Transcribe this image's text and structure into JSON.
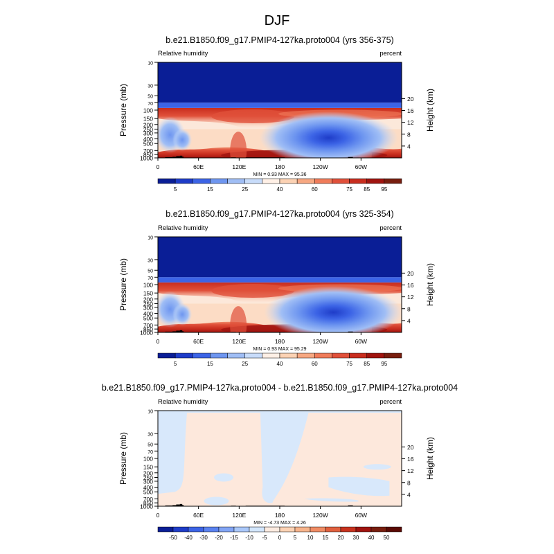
{
  "main_title": "DJF",
  "chart_data": [
    {
      "type": "heatmap",
      "title": "b.e21.B1850.f09_g17.PMIP4-127ka.proto004 (yrs 356-375)",
      "left_label": "Relative humidity",
      "right_label": "percent",
      "ylabel": "Pressure (mb)",
      "ylabel_right": "Height (km)",
      "x_ticks": [
        "0",
        "60E",
        "120E",
        "180",
        "120W",
        "60W"
      ],
      "y_ticks": [
        "10",
        "30",
        "50",
        "70",
        "100",
        "150",
        "200",
        "250",
        "300",
        "400",
        "500",
        "700",
        "850",
        "1000"
      ],
      "height_ticks": [
        "20",
        "16",
        "12",
        "8",
        "4"
      ],
      "min_max_text": "MIN =   0.93  MAX =  95.36",
      "colorbar_labels": [
        "5",
        "15",
        "25",
        "40",
        "60",
        "75",
        "85",
        "95"
      ]
    },
    {
      "type": "heatmap",
      "title": "b.e21.B1850.f09_g17.PMIP4-127ka.proto004 (yrs 325-354)",
      "left_label": "Relative humidity",
      "right_label": "percent",
      "ylabel": "Pressure (mb)",
      "ylabel_right": "Height (km)",
      "x_ticks": [
        "0",
        "60E",
        "120E",
        "180",
        "120W",
        "60W"
      ],
      "y_ticks": [
        "10",
        "30",
        "50",
        "70",
        "100",
        "150",
        "200",
        "250",
        "300",
        "400",
        "500",
        "700",
        "850",
        "1000"
      ],
      "height_ticks": [
        "20",
        "16",
        "12",
        "8",
        "4"
      ],
      "min_max_text": "MIN =   0.93  MAX =  95.29",
      "colorbar_labels": [
        "5",
        "15",
        "25",
        "40",
        "60",
        "75",
        "85",
        "95"
      ]
    },
    {
      "type": "heatmap",
      "title": "b.e21.B1850.f09_g17.PMIP4-127ka.proto004 - b.e21.B1850.f09_g17.PMIP4-127ka.proto004",
      "left_label": "Relative humidity",
      "right_label": "percent",
      "ylabel": "Pressure (mb)",
      "ylabel_right": "Height (km)",
      "x_ticks": [
        "0",
        "60E",
        "120E",
        "180",
        "120W",
        "60W"
      ],
      "y_ticks": [
        "10",
        "30",
        "50",
        "70",
        "100",
        "150",
        "200",
        "250",
        "300",
        "400",
        "500",
        "700",
        "850",
        "1000"
      ],
      "height_ticks": [
        "20",
        "16",
        "12",
        "8",
        "4"
      ],
      "min_max_text": "MIN =  -4.73  MAX =   4.26",
      "colorbar_labels": [
        "-50",
        "-40",
        "-30",
        "-20",
        "-15",
        "-10",
        "-5",
        "0",
        "5",
        "10",
        "15",
        "20",
        "30",
        "40",
        "50"
      ]
    }
  ],
  "colors": {
    "abs_scale": [
      "#0a1e96",
      "#1e3cc8",
      "#3c64e6",
      "#6e96f0",
      "#a0bef5",
      "#c8dcfa",
      "#fff0e6",
      "#fcd2b4",
      "#f7a882",
      "#f07c5a",
      "#e0503a",
      "#c82d1e",
      "#a0140f",
      "#781e0f"
    ],
    "diff_scale": [
      "#0a1e96",
      "#1e3cc8",
      "#3c64e6",
      "#5a82f0",
      "#82a5f5",
      "#aac8fa",
      "#d2e6fc",
      "#fcebe0",
      "#fcd2b4",
      "#f7b48c",
      "#f08c64",
      "#e0603e",
      "#c8321e",
      "#a0140f",
      "#781e0f",
      "#5a0a05"
    ],
    "background_lowest": "#fce8da",
    "diff_field": "#fde8dc",
    "diff_negative": "#d8e8fb",
    "topography": "#000000"
  }
}
